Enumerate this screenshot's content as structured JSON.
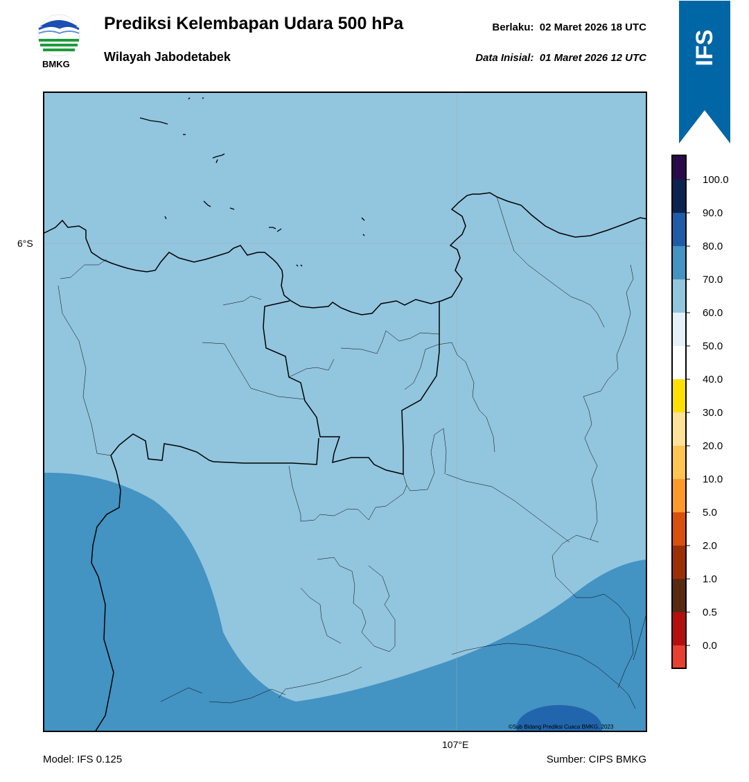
{
  "header": {
    "title": "Prediksi Kelembapan Udara 500 hPa",
    "subtitle": "Wilayah Jabodetabek",
    "valid_label": "Berlaku:",
    "valid_time": "02 Maret 2026 18 UTC",
    "init_label": "Data Inisial:",
    "init_time": "01 Maret 2026 12 UTC"
  },
  "logo": {
    "icon": "bmkg-logo-icon",
    "text": "BMKG"
  },
  "ribbon": {
    "text": "IFS",
    "color": "#0066a6"
  },
  "map": {
    "lat_label": "6°S",
    "lon_label": "107°E",
    "copyright": "©Sub Bidang Prediksi Cuaca BMKG, 2023"
  },
  "colorbar": {
    "labels": [
      "100.0",
      "90.0",
      "80.0",
      "70.0",
      "60.0",
      "50.0",
      "40.0",
      "30.0",
      "20.0",
      "10.0",
      "5.0",
      "2.0",
      "1.0",
      "0.5",
      "0.0"
    ],
    "colors": [
      "#2a0a4a",
      "#0b2350",
      "#1e5ca8",
      "#4393c3",
      "#92c5de",
      "#e6f0f7",
      "#ffffff",
      "#ffe000",
      "#ffe29a",
      "#ffc451",
      "#ff9a2a",
      "#d9500c",
      "#9b3005",
      "#5a2a10",
      "#b50e0e",
      "#e84030"
    ]
  },
  "footer": {
    "model": "Model: IFS 0.125",
    "source": "Sumber: CIPS BMKG"
  }
}
